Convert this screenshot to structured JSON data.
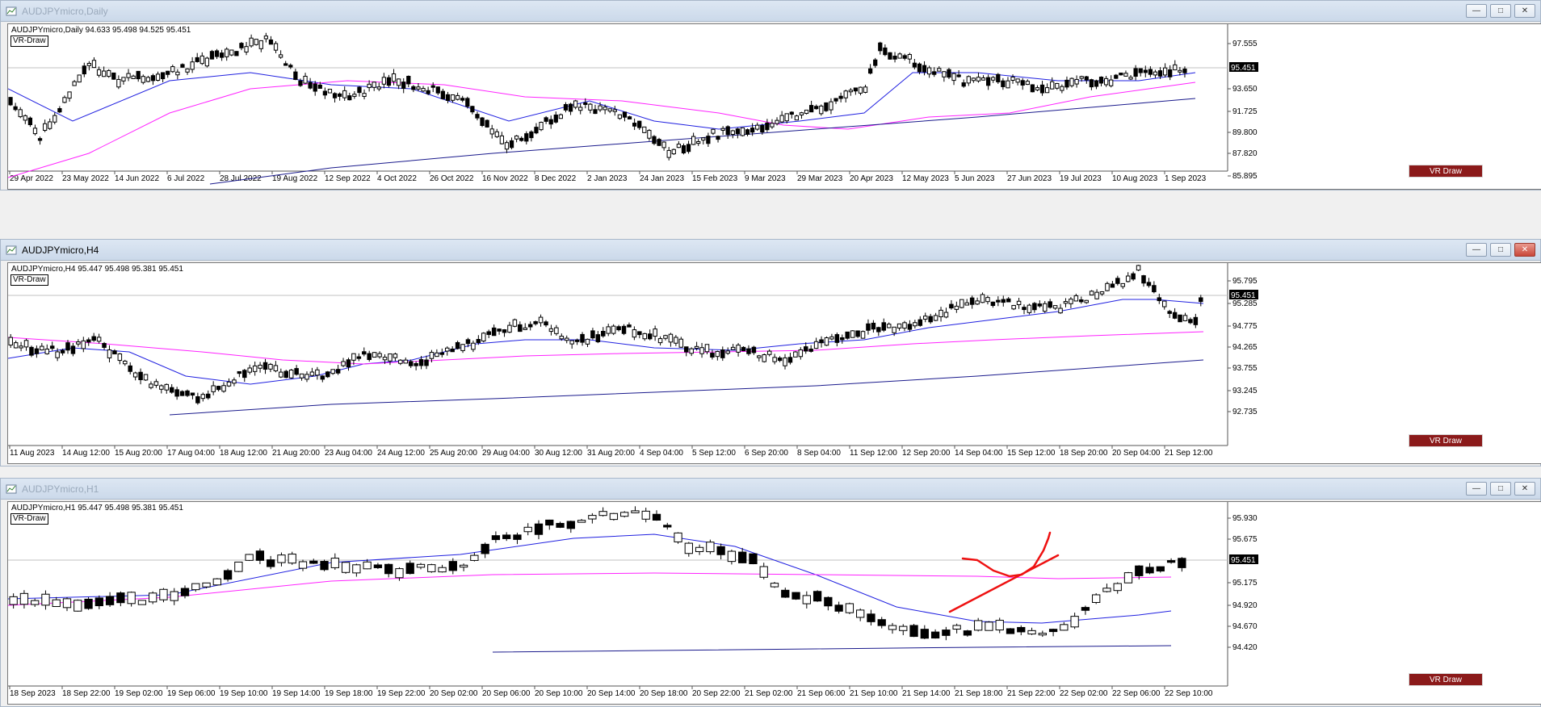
{
  "windows": [
    {
      "title": "AUDJPYmicro,Daily",
      "ohlc_line": "AUDJPYmicro,Daily  94.633 95.498 94.525 95.451",
      "vr_label": "VR-Draw",
      "vr_button": "VR Draw",
      "current_price": "95.451",
      "price_ticks": [
        "97.555",
        "95.451",
        "93.650",
        "91.725",
        "89.800",
        "87.820",
        "85.895"
      ],
      "date_ticks": [
        "29 Apr 2022",
        "23 May 2022",
        "14 Jun 2022",
        "6 Jul 2022",
        "28 Jul 2022",
        "19 Aug 2022",
        "12 Sep 2022",
        "4 Oct 2022",
        "26 Oct 2022",
        "16 Nov 2022",
        "8 Dec 2022",
        "2 Jan 2023",
        "24 Jan 2023",
        "15 Feb 2023",
        "9 Mar 2023",
        "29 Mar 2023",
        "20 Apr 2023",
        "12 May 2023",
        "5 Jun 2023",
        "27 Jun 2023",
        "19 Jul 2023",
        "10 Aug 2023",
        "1 Sep 2023"
      ]
    },
    {
      "title": "AUDJPYmicro,H4",
      "ohlc_line": "AUDJPYmicro,H4  95.447 95.498 95.381 95.451",
      "vr_label": "VR-Draw",
      "vr_button": "VR Draw",
      "current_price": "95.451",
      "price_ticks": [
        "95.795",
        "95.451",
        "95.285",
        "94.775",
        "94.265",
        "93.755",
        "93.245",
        "92.735"
      ],
      "date_ticks": [
        "11 Aug 2023",
        "14 Aug 12:00",
        "15 Aug 20:00",
        "17 Aug 04:00",
        "18 Aug 12:00",
        "21 Aug 20:00",
        "23 Aug 04:00",
        "24 Aug 12:00",
        "25 Aug 20:00",
        "29 Aug 04:00",
        "30 Aug 12:00",
        "31 Aug 20:00",
        "4 Sep 04:00",
        "5 Sep 12:00",
        "6 Sep 20:00",
        "8 Sep 04:00",
        "11 Sep 12:00",
        "12 Sep 20:00",
        "14 Sep 04:00",
        "15 Sep 12:00",
        "18 Sep 20:00",
        "20 Sep 04:00",
        "21 Sep 12:00"
      ]
    },
    {
      "title": "AUDJPYmicro,H1",
      "ohlc_line": "AUDJPYmicro,H1  95.447 95.498 95.381 95.451",
      "vr_label": "VR-Draw",
      "vr_button": "VR Draw",
      "current_price": "95.451",
      "price_ticks": [
        "95.930",
        "95.675",
        "95.451",
        "95.175",
        "94.920",
        "94.670",
        "94.420"
      ],
      "date_ticks": [
        "18 Sep 2023",
        "18 Sep 22:00",
        "19 Sep 02:00",
        "19 Sep 06:00",
        "19 Sep 10:00",
        "19 Sep 14:00",
        "19 Sep 18:00",
        "19 Sep 22:00",
        "20 Sep 02:00",
        "20 Sep 06:00",
        "20 Sep 10:00",
        "20 Sep 14:00",
        "20 Sep 18:00",
        "20 Sep 22:00",
        "21 Sep 02:00",
        "21 Sep 06:00",
        "21 Sep 10:00",
        "21 Sep 14:00",
        "21 Sep 18:00",
        "21 Sep 22:00",
        "22 Sep 02:00",
        "22 Sep 06:00",
        "22 Sep 10:00"
      ]
    }
  ],
  "colors": {
    "ma_fast": "#2020e0",
    "ma_mid": "#ff22ff",
    "ma_slow": "#1a1a8c",
    "drawing": "#ee1111",
    "vr_button_bg": "#8b1a1a"
  },
  "icons": {
    "window_icon": "chart-window-icon",
    "minimize": "minimize-icon",
    "maximize": "maximize-icon",
    "close": "close-icon"
  }
}
